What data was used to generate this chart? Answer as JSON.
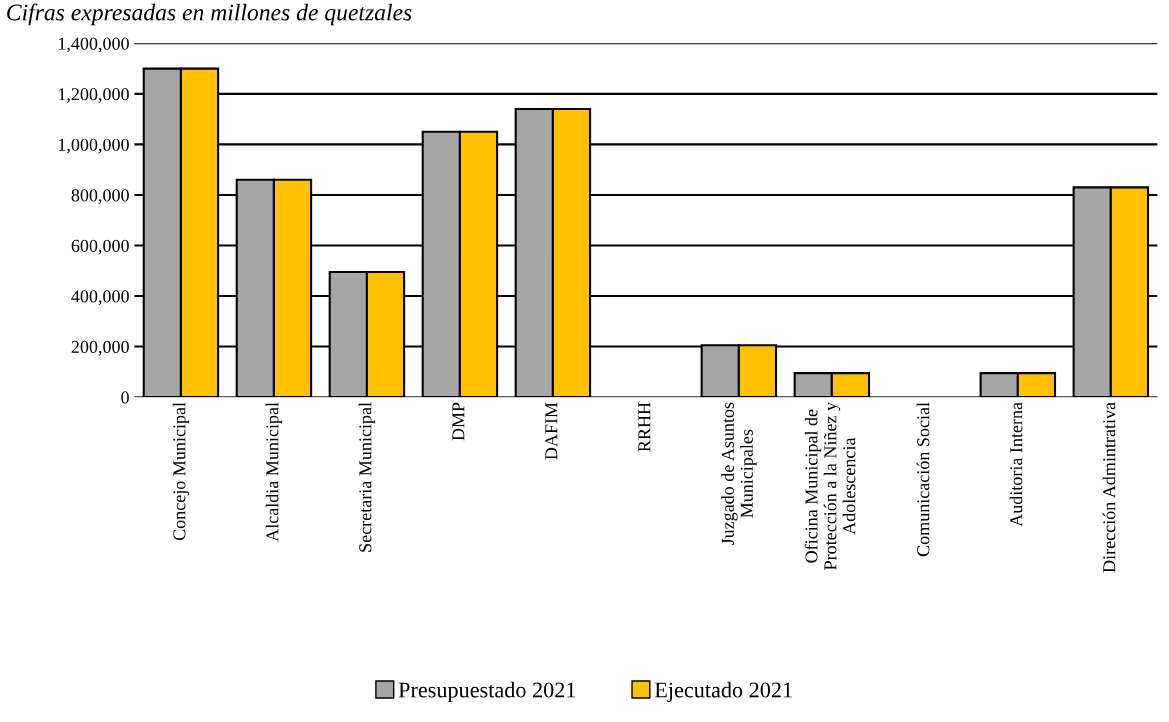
{
  "chart_data": {
    "type": "bar",
    "title": "Cifras expresadas en millones de quetzales",
    "categories": [
      "Concejo Municipal",
      "Alcaldia Municipal",
      "Secretaria Municipal",
      "DMP",
      "DAFIM",
      "RRHH",
      "Juzgado de Asuntos\nMunicipales",
      "Oficina Municipal de\nProtección a la Niñez y\nAdolescencia",
      "Comunicación Social",
      "Auditoria Interna",
      "Dirección Admintrativa"
    ],
    "series": [
      {
        "name": "Presupuestado 2021",
        "color": "#a6a6a6",
        "values": [
          1300000,
          860000,
          495000,
          1050000,
          1140000,
          0,
          205000,
          95000,
          0,
          95000,
          830000
        ]
      },
      {
        "name": "Ejecutado 2021",
        "color": "#ffc000",
        "values": [
          1300000,
          860000,
          495000,
          1050000,
          1140000,
          0,
          205000,
          95000,
          0,
          95000,
          830000
        ]
      }
    ],
    "ylim": [
      0,
      1400000
    ],
    "yticks": [
      0,
      {
        "value": 200000,
        "label": "200,000"
      },
      {
        "value": 400000,
        "label": "400,000"
      },
      {
        "value": 600000,
        "label": "600,000"
      },
      {
        "value": 800000,
        "label": "800,000"
      },
      {
        "value": 1000000,
        "label": "1,000,000"
      },
      {
        "value": 1200000,
        "label": "1,200,000"
      },
      {
        "value": 1400000,
        "label": "1,400,000"
      }
    ],
    "grid": "y",
    "legend": "bottom"
  }
}
